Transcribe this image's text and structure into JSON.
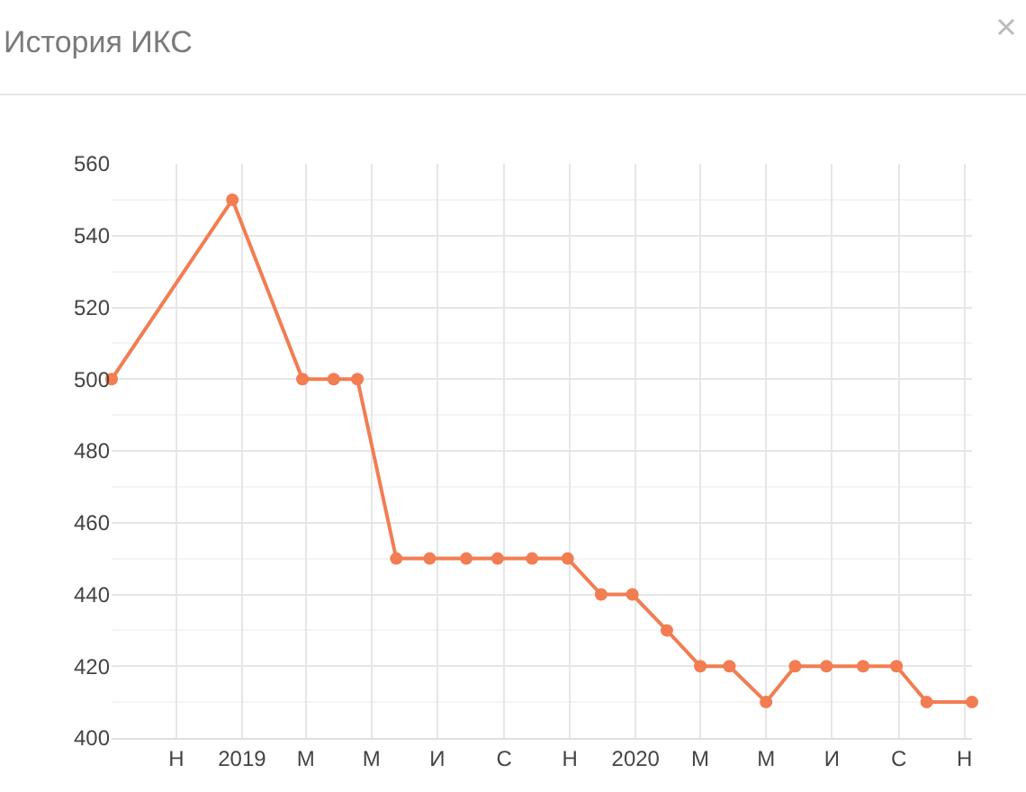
{
  "chart_data": {
    "type": "line",
    "title": "История ИКС",
    "x": [
      "2018-09-02",
      "2018-12-23",
      "2019-02-26",
      "2019-03-27",
      "2019-04-18",
      "2019-05-24",
      "2019-06-24",
      "2019-07-28",
      "2019-08-26",
      "2019-09-27",
      "2019-10-30",
      "2019-11-30",
      "2019-12-29",
      "2020-01-30",
      "2020-03-01",
      "2020-03-28",
      "2020-05-01",
      "2020-05-28",
      "2020-06-26",
      "2020-07-30",
      "2020-08-30",
      "2020-09-27",
      "2020-11-08"
    ],
    "series": [
      {
        "color": "#f27d52",
        "values": [
          500,
          550,
          500,
          500,
          500,
          450,
          450,
          450,
          450,
          450,
          450,
          440,
          440,
          430,
          420,
          420,
          410,
          420,
          420,
          420,
          420,
          410,
          410
        ]
      }
    ],
    "xlim": [
      "2018-09-02",
      "2020-11-08"
    ],
    "xticks": [
      {
        "value": "2018-11-01",
        "label": "Н"
      },
      {
        "value": "2019-01-01",
        "label": "2019"
      },
      {
        "value": "2019-03-01",
        "label": "М"
      },
      {
        "value": "2019-05-01",
        "label": "М"
      },
      {
        "value": "2019-07-01",
        "label": "И"
      },
      {
        "value": "2019-09-01",
        "label": "С"
      },
      {
        "value": "2019-11-01",
        "label": "Н"
      },
      {
        "value": "2020-01-01",
        "label": "2020"
      },
      {
        "value": "2020-03-01",
        "label": "М"
      },
      {
        "value": "2020-05-01",
        "label": "М"
      },
      {
        "value": "2020-07-01",
        "label": "И"
      },
      {
        "value": "2020-09-01",
        "label": "С"
      },
      {
        "value": "2020-11-01",
        "label": "Н"
      }
    ],
    "ylim": [
      400,
      560
    ],
    "yticks": [
      400,
      420,
      440,
      460,
      480,
      500,
      520,
      540,
      560
    ],
    "grid": true,
    "marker": "circle",
    "line_style": "solid"
  }
}
